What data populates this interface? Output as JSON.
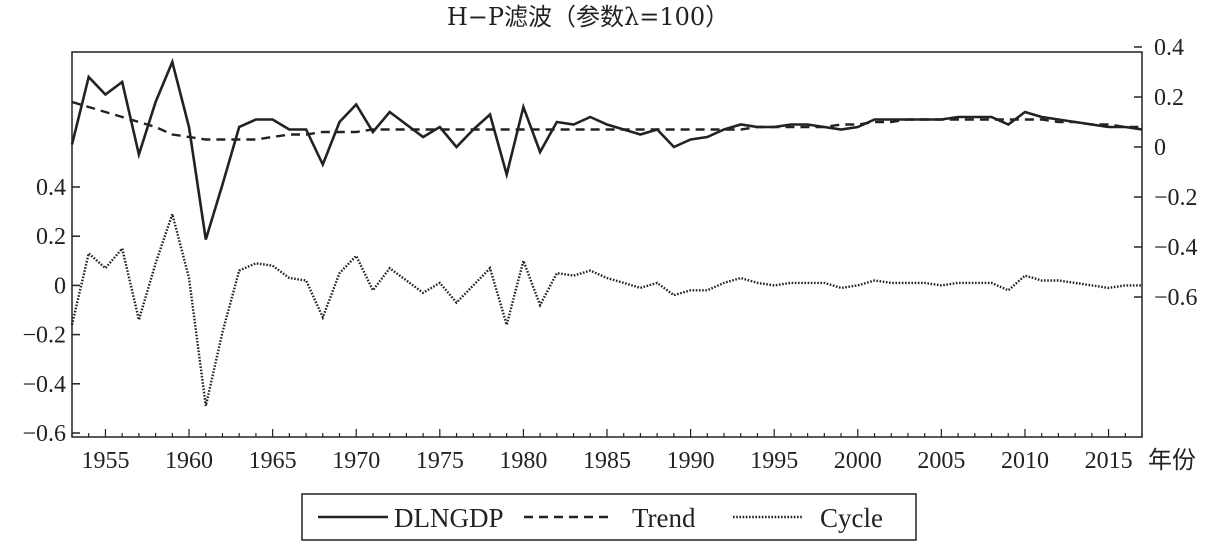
{
  "chart_data": {
    "type": "line",
    "title": "H−P滤波（参数λ=100）",
    "xlabel": "年份",
    "x_ticks": [
      "1955",
      "1960",
      "1965",
      "1970",
      "1975",
      "1980",
      "1985",
      "1990",
      "1995",
      "2000",
      "2005",
      "2010",
      "2015"
    ],
    "x_range": [
      1953,
      2017
    ],
    "left_axis": {
      "range": [
        -0.6,
        0.4
      ],
      "ticks": [
        "0.4",
        "0.2",
        "0",
        "−0.2",
        "−0.4",
        "−0.6"
      ],
      "tick_values": [
        0.4,
        0.2,
        0,
        -0.2,
        -0.4,
        -0.6
      ]
    },
    "right_axis": {
      "range": [
        -0.6,
        0.4
      ],
      "ticks": [
        "0.4",
        "0.2",
        "0",
        "−0.2",
        "−0.4",
        "−0.6"
      ],
      "tick_values": [
        0.4,
        0.2,
        0,
        -0.2,
        -0.4,
        -0.6
      ]
    },
    "legend_position": "bottom-center",
    "grid": false,
    "x": [
      1953,
      1954,
      1955,
      1956,
      1957,
      1958,
      1959,
      1960,
      1961,
      1962,
      1963,
      1964,
      1965,
      1966,
      1967,
      1968,
      1969,
      1970,
      1971,
      1972,
      1973,
      1974,
      1975,
      1976,
      1977,
      1978,
      1979,
      1980,
      1981,
      1982,
      1983,
      1984,
      1985,
      1986,
      1987,
      1988,
      1989,
      1990,
      1991,
      1992,
      1993,
      1994,
      1995,
      1996,
      1997,
      1998,
      1999,
      2000,
      2001,
      2002,
      2003,
      2004,
      2005,
      2006,
      2007,
      2008,
      2009,
      2010,
      2011,
      2012,
      2013,
      2014,
      2015,
      2016,
      2017
    ],
    "series": [
      {
        "name": "DLNGDP",
        "axis": "right",
        "style": "solid",
        "values": [
          0.01,
          0.28,
          0.21,
          0.26,
          -0.03,
          0.18,
          0.34,
          0.08,
          -0.37,
          -0.15,
          0.08,
          0.11,
          0.11,
          0.07,
          0.07,
          -0.07,
          0.1,
          0.17,
          0.06,
          0.14,
          0.09,
          0.04,
          0.08,
          0.0,
          0.07,
          0.13,
          -0.11,
          0.16,
          -0.02,
          0.1,
          0.09,
          0.12,
          0.09,
          0.07,
          0.05,
          0.07,
          0.0,
          0.03,
          0.04,
          0.07,
          0.09,
          0.08,
          0.08,
          0.09,
          0.09,
          0.08,
          0.07,
          0.08,
          0.11,
          0.11,
          0.11,
          0.11,
          0.11,
          0.12,
          0.12,
          0.12,
          0.09,
          0.14,
          0.12,
          0.11,
          0.1,
          0.09,
          0.08,
          0.08,
          0.07
        ]
      },
      {
        "name": "Trend",
        "axis": "right",
        "style": "dashed",
        "values": [
          0.18,
          0.16,
          0.14,
          0.12,
          0.1,
          0.08,
          0.05,
          0.04,
          0.03,
          0.03,
          0.03,
          0.03,
          0.04,
          0.05,
          0.05,
          0.06,
          0.06,
          0.06,
          0.07,
          0.07,
          0.07,
          0.07,
          0.07,
          0.07,
          0.07,
          0.07,
          0.07,
          0.07,
          0.07,
          0.07,
          0.07,
          0.07,
          0.07,
          0.07,
          0.07,
          0.07,
          0.07,
          0.07,
          0.07,
          0.07,
          0.07,
          0.08,
          0.08,
          0.08,
          0.08,
          0.08,
          0.09,
          0.09,
          0.1,
          0.1,
          0.11,
          0.11,
          0.11,
          0.11,
          0.11,
          0.11,
          0.11,
          0.11,
          0.11,
          0.1,
          0.1,
          0.09,
          0.09,
          0.08,
          0.08
        ]
      },
      {
        "name": "Cycle",
        "axis": "left",
        "style": "dotted",
        "values": [
          -0.16,
          0.13,
          0.07,
          0.15,
          -0.14,
          0.09,
          0.29,
          0.03,
          -0.49,
          -0.19,
          0.06,
          0.09,
          0.08,
          0.03,
          0.02,
          -0.13,
          0.05,
          0.12,
          -0.02,
          0.07,
          0.02,
          -0.03,
          0.01,
          -0.07,
          0.0,
          0.07,
          -0.16,
          0.1,
          -0.08,
          0.05,
          0.04,
          0.06,
          0.03,
          0.01,
          -0.01,
          0.01,
          -0.04,
          -0.02,
          -0.02,
          0.01,
          0.03,
          0.01,
          0.0,
          0.01,
          0.01,
          0.01,
          -0.01,
          0.0,
          0.02,
          0.01,
          0.01,
          0.01,
          0.0,
          0.01,
          0.01,
          0.01,
          -0.02,
          0.04,
          0.02,
          0.02,
          0.01,
          0.0,
          -0.01,
          0.0,
          0.0
        ]
      }
    ],
    "legend": [
      "DLNGDP",
      "Trend",
      "Cycle"
    ]
  },
  "colors": {
    "line": "#222222",
    "axis": "#222222",
    "background": "#ffffff"
  }
}
